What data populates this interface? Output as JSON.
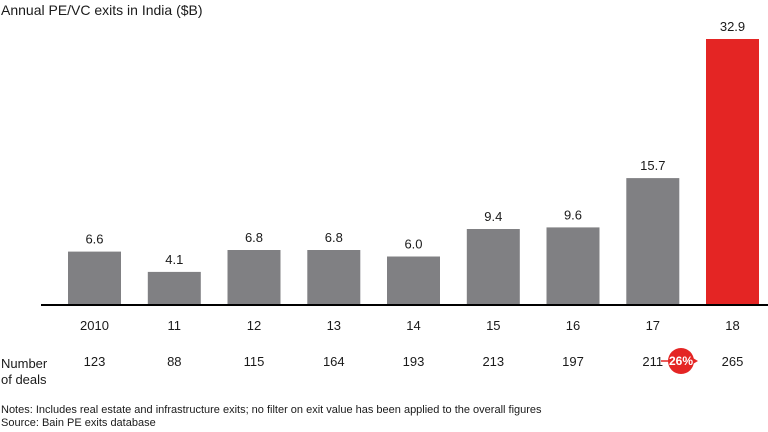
{
  "title": "Annual PE/VC exits in India ($B)",
  "chart_data": {
    "type": "bar",
    "categories": [
      "2010",
      "11",
      "12",
      "13",
      "14",
      "15",
      "16",
      "17",
      "18"
    ],
    "values": [
      6.6,
      4.1,
      6.8,
      6.8,
      6.0,
      9.4,
      9.6,
      15.7,
      32.9
    ],
    "value_labels": [
      "6.6",
      "4.1",
      "6.8",
      "6.8",
      "6.0",
      "9.4",
      "9.6",
      "15.7",
      "32.9"
    ],
    "highlight_index": 8,
    "title": "Annual PE/VC exits in India ($B)",
    "xlabel": "",
    "ylabel": "",
    "ylim": [
      0,
      32.9
    ],
    "grid": false,
    "colors": {
      "bar": "#808083",
      "highlight": "#e42524",
      "axis": "#000000"
    }
  },
  "deals": {
    "label_line1": "Number",
    "label_line2": "of deals",
    "counts": [
      "123",
      "88",
      "115",
      "164",
      "193",
      "213",
      "197",
      "211",
      "265"
    ]
  },
  "cagr": {
    "label": "26%",
    "color": "#e42524"
  },
  "notes": {
    "line1": "Notes: Includes real estate and infrastructure exits; no filter on exit value has been applied to the overall figures",
    "line2": "Source: Bain PE exits database"
  }
}
